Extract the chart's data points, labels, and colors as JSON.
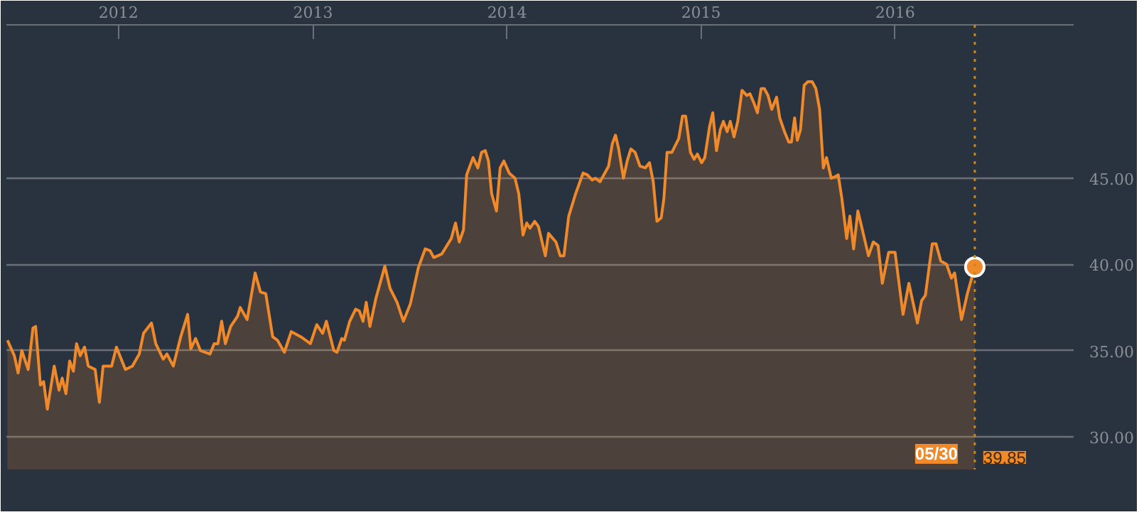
{
  "chart_data": {
    "type": "area",
    "grid": "y",
    "xlim": [
      "2011-06-04",
      "2016-12-02"
    ],
    "ylim": [
      28.1,
      53.9
    ],
    "xticks": [
      {
        "value": "2012-01-01",
        "label": "2012"
      },
      {
        "value": "2013-01-01",
        "label": "2013"
      },
      {
        "value": "2014-01-01",
        "label": "2014"
      },
      {
        "value": "2015-01-01",
        "label": "2015"
      },
      {
        "value": "2016-01-01",
        "label": "2016"
      }
    ],
    "yticks": [
      {
        "value": 30,
        "label": "30.00"
      },
      {
        "value": 35,
        "label": "35.00"
      },
      {
        "value": 40,
        "label": "40.00"
      },
      {
        "value": 45,
        "label": "45.00"
      }
    ],
    "ref_lines": [
      {
        "axis": "x",
        "value": "2016-05-30",
        "color": "#c8861e",
        "line_style": "dotted"
      }
    ],
    "annotations": [
      {
        "text": "05/30",
        "x": "2016-05-30"
      },
      {
        "text": "39.85",
        "x": "2016-05-30"
      }
    ],
    "series": [
      {
        "color": "#f0892a",
        "x": [
          "2011-06-06",
          "2011-06-19",
          "2011-06-26",
          "2011-07-03",
          "2011-07-15",
          "2011-07-24",
          "2011-07-29",
          "2011-08-07",
          "2011-08-13",
          "2011-08-20",
          "2011-09-02",
          "2011-09-11",
          "2011-09-17",
          "2011-09-24",
          "2011-10-01",
          "2011-10-08",
          "2011-10-14",
          "2011-10-21",
          "2011-10-29",
          "2011-11-05",
          "2011-11-18",
          "2011-11-26",
          "2011-12-03",
          "2011-12-19",
          "2011-12-28",
          "2012-01-14",
          "2012-01-27",
          "2012-02-09",
          "2012-02-17",
          "2012-03-03",
          "2012-03-11",
          "2012-03-25",
          "2012-04-01",
          "2012-04-13",
          "2012-04-27",
          "2012-05-10",
          "2012-05-16",
          "2012-05-25",
          "2012-06-03",
          "2012-06-21",
          "2012-06-29",
          "2012-07-06",
          "2012-07-13",
          "2012-07-20",
          "2012-07-30",
          "2012-08-12",
          "2012-08-17",
          "2012-08-30",
          "2012-09-14",
          "2012-09-24",
          "2012-10-04",
          "2012-10-17",
          "2012-10-26",
          "2012-11-08",
          "2012-11-21",
          "2012-12-09",
          "2012-12-27",
          "2013-01-08",
          "2013-01-19",
          "2013-01-26",
          "2013-02-09",
          "2013-02-15",
          "2013-02-24",
          "2013-03-01",
          "2013-03-11",
          "2013-03-22",
          "2013-03-29",
          "2013-04-05",
          "2013-04-11",
          "2013-04-18",
          "2013-04-29",
          "2013-05-16",
          "2013-05-26",
          "2013-06-08",
          "2013-06-20",
          "2013-07-03",
          "2013-07-18",
          "2013-07-31",
          "2013-08-09",
          "2013-08-16",
          "2013-08-31",
          "2013-09-18",
          "2013-09-26",
          "2013-10-03",
          "2013-10-11",
          "2013-10-17",
          "2013-10-29",
          "2013-11-07",
          "2013-11-14",
          "2013-11-21",
          "2013-11-27",
          "2013-12-03",
          "2013-12-12",
          "2013-12-19",
          "2013-12-26",
          "2014-01-05",
          "2014-01-16",
          "2014-01-23",
          "2014-01-31",
          "2014-02-07",
          "2014-02-13",
          "2014-02-22",
          "2014-03-01",
          "2014-03-14",
          "2014-03-20",
          "2014-04-03",
          "2014-04-11",
          "2014-04-18",
          "2014-04-27",
          "2014-05-10",
          "2014-05-24",
          "2014-06-01",
          "2014-06-10",
          "2014-06-16",
          "2014-06-25",
          "2014-07-11",
          "2014-07-18",
          "2014-07-24",
          "2014-07-30",
          "2014-08-08",
          "2014-08-15",
          "2014-08-22",
          "2014-08-30",
          "2014-09-08",
          "2014-09-18",
          "2014-09-26",
          "2014-10-03",
          "2014-10-10",
          "2014-10-18",
          "2014-10-23",
          "2014-10-29",
          "2014-11-07",
          "2014-11-20",
          "2014-11-27",
          "2014-12-03",
          "2014-12-12",
          "2014-12-19",
          "2014-12-25",
          "2015-01-02",
          "2015-01-08",
          "2015-01-17",
          "2015-01-23",
          "2015-01-30",
          "2015-02-06",
          "2015-02-12",
          "2015-02-19",
          "2015-02-25",
          "2015-03-04",
          "2015-03-11",
          "2015-03-19",
          "2015-03-28",
          "2015-04-03",
          "2015-04-10",
          "2015-04-17",
          "2015-04-24",
          "2015-04-30",
          "2015-05-07",
          "2015-05-14",
          "2015-05-23",
          "2015-05-29",
          "2015-06-07",
          "2015-06-15",
          "2015-06-20",
          "2015-06-26",
          "2015-07-01",
          "2015-07-07",
          "2015-07-14",
          "2015-07-21",
          "2015-07-29",
          "2015-08-05",
          "2015-08-12",
          "2015-08-19",
          "2015-08-25",
          "2015-09-03",
          "2015-09-11",
          "2015-09-16",
          "2015-09-23",
          "2015-10-02",
          "2015-10-08",
          "2015-10-15",
          "2015-10-23",
          "2015-10-30",
          "2015-11-12",
          "2015-11-21",
          "2015-11-30",
          "2015-12-08",
          "2015-12-20",
          "2016-01-01",
          "2016-01-16",
          "2016-01-27",
          "2016-02-12",
          "2016-02-20",
          "2016-02-27",
          "2016-03-11",
          "2016-03-18",
          "2016-03-27",
          "2016-04-07",
          "2016-04-16",
          "2016-04-22",
          "2016-05-05",
          "2016-05-16",
          "2016-05-30"
        ],
        "values": [
          35.6,
          34.7,
          33.7,
          35.0,
          33.9,
          36.3,
          36.4,
          33.0,
          33.2,
          31.6,
          34.1,
          32.7,
          33.4,
          32.5,
          34.4,
          33.8,
          35.4,
          34.7,
          35.2,
          34.1,
          33.9,
          32.0,
          34.1,
          34.1,
          35.2,
          33.9,
          34.1,
          34.8,
          36.0,
          36.6,
          35.4,
          34.5,
          34.8,
          34.1,
          35.8,
          37.1,
          35.1,
          35.7,
          35.0,
          34.8,
          35.4,
          35.4,
          36.7,
          35.4,
          36.4,
          37.0,
          37.5,
          36.8,
          39.5,
          38.4,
          38.3,
          35.8,
          35.6,
          34.9,
          36.1,
          35.8,
          35.4,
          36.5,
          36.0,
          36.7,
          35.0,
          34.9,
          35.7,
          35.6,
          36.7,
          37.4,
          37.3,
          36.7,
          37.8,
          36.4,
          38.0,
          39.9,
          38.6,
          37.8,
          36.7,
          37.7,
          39.8,
          40.9,
          40.8,
          40.4,
          40.6,
          41.5,
          42.4,
          41.3,
          42.0,
          45.2,
          46.2,
          45.6,
          46.5,
          46.6,
          46.0,
          44.1,
          43.1,
          45.6,
          46.0,
          45.3,
          45.0,
          44.1,
          41.7,
          42.4,
          42.1,
          42.5,
          42.2,
          40.5,
          41.8,
          41.3,
          40.5,
          40.5,
          42.8,
          44.1,
          45.3,
          45.2,
          44.9,
          45.0,
          44.8,
          45.7,
          47.0,
          47.5,
          46.7,
          45.0,
          46.0,
          46.7,
          46.5,
          45.7,
          45.6,
          45.9,
          44.8,
          42.5,
          42.7,
          43.8,
          46.5,
          46.5,
          47.3,
          48.6,
          48.6,
          46.5,
          46.1,
          46.4,
          45.9,
          46.2,
          48.0,
          48.8,
          46.6,
          47.8,
          48.3,
          47.7,
          48.3,
          47.4,
          48.3,
          50.1,
          49.8,
          49.9,
          49.4,
          48.8,
          50.2,
          50.2,
          49.8,
          49.0,
          49.7,
          48.5,
          47.7,
          47.1,
          47.1,
          48.5,
          47.2,
          47.8,
          50.4,
          50.6,
          50.6,
          50.2,
          49.0,
          45.6,
          46.2,
          45.0,
          45.1,
          45.2,
          43.8,
          41.5,
          42.8,
          40.9,
          43.1,
          42.2,
          40.5,
          41.3,
          41.1,
          38.9,
          40.7,
          40.7,
          37.1,
          38.9,
          36.6,
          37.9,
          38.2,
          41.2,
          41.2,
          40.2,
          40.0,
          39.2,
          39.5,
          36.8,
          38.3,
          39.85
        ]
      }
    ]
  }
}
